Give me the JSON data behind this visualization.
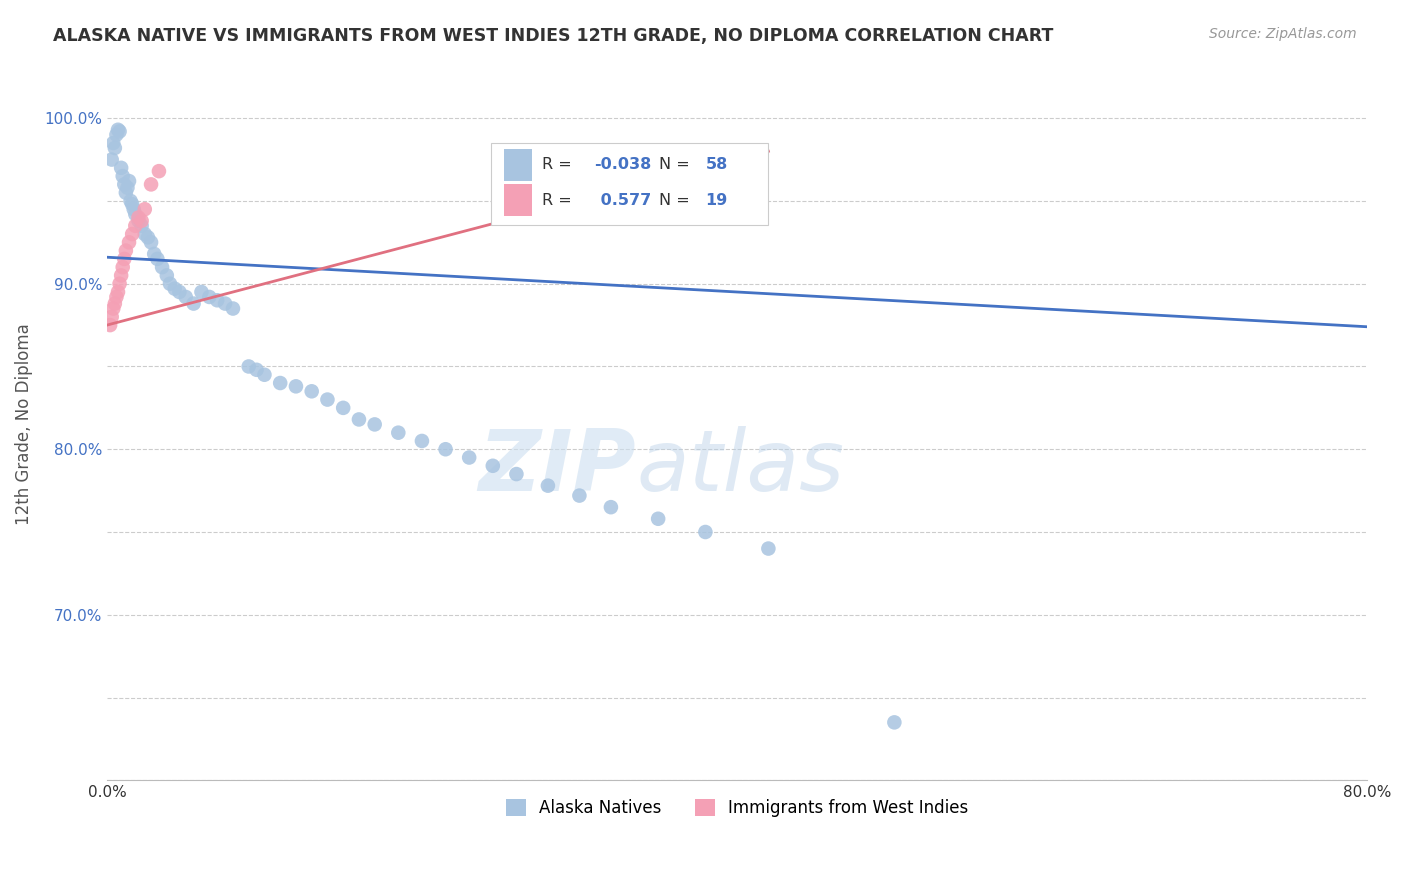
{
  "title": "ALASKA NATIVE VS IMMIGRANTS FROM WEST INDIES 12TH GRADE, NO DIPLOMA CORRELATION CHART",
  "source": "Source: ZipAtlas.com",
  "ylabel": "12th Grade, No Diploma",
  "xlim": [
    0.0,
    0.8
  ],
  "ylim": [
    0.6,
    1.03
  ],
  "xticks": [
    0.0,
    0.1,
    0.2,
    0.3,
    0.4,
    0.5,
    0.6,
    0.7,
    0.8
  ],
  "xticklabels": [
    "0.0%",
    "",
    "",
    "",
    "",
    "",
    "",
    "",
    "80.0%"
  ],
  "yticks": [
    0.6,
    0.65,
    0.7,
    0.75,
    0.8,
    0.85,
    0.9,
    0.95,
    1.0
  ],
  "yticklabels": [
    "",
    "",
    "70.0%",
    "",
    "80.0%",
    "",
    "90.0%",
    "",
    "100.0%"
  ],
  "blue_color": "#a8c4e0",
  "pink_color": "#f4a0b5",
  "blue_line_color": "#4472c4",
  "pink_line_color": "#e07080",
  "watermark_zip": "ZIP",
  "watermark_atlas": "atlas",
  "alaska_x": [
    0.003,
    0.004,
    0.005,
    0.006,
    0.007,
    0.008,
    0.009,
    0.01,
    0.011,
    0.012,
    0.013,
    0.014,
    0.015,
    0.016,
    0.017,
    0.018,
    0.02,
    0.022,
    0.024,
    0.026,
    0.028,
    0.03,
    0.032,
    0.035,
    0.038,
    0.04,
    0.043,
    0.046,
    0.05,
    0.055,
    0.06,
    0.065,
    0.07,
    0.075,
    0.08,
    0.09,
    0.095,
    0.1,
    0.11,
    0.12,
    0.13,
    0.14,
    0.15,
    0.16,
    0.17,
    0.185,
    0.2,
    0.215,
    0.23,
    0.245,
    0.26,
    0.28,
    0.3,
    0.32,
    0.35,
    0.38,
    0.42,
    0.5
  ],
  "alaska_y": [
    0.975,
    0.985,
    0.982,
    0.99,
    0.993,
    0.992,
    0.97,
    0.965,
    0.96,
    0.955,
    0.958,
    0.962,
    0.95,
    0.948,
    0.945,
    0.942,
    0.938,
    0.935,
    0.93,
    0.928,
    0.925,
    0.918,
    0.915,
    0.91,
    0.905,
    0.9,
    0.897,
    0.895,
    0.892,
    0.888,
    0.895,
    0.892,
    0.89,
    0.888,
    0.885,
    0.85,
    0.848,
    0.845,
    0.84,
    0.838,
    0.835,
    0.83,
    0.825,
    0.818,
    0.815,
    0.81,
    0.805,
    0.8,
    0.795,
    0.79,
    0.785,
    0.778,
    0.772,
    0.765,
    0.758,
    0.75,
    0.74,
    0.635
  ],
  "westindies_x": [
    0.002,
    0.003,
    0.004,
    0.005,
    0.006,
    0.007,
    0.008,
    0.009,
    0.01,
    0.011,
    0.012,
    0.014,
    0.016,
    0.018,
    0.02,
    0.022,
    0.024,
    0.028,
    0.033
  ],
  "westindies_y": [
    0.875,
    0.88,
    0.885,
    0.888,
    0.892,
    0.895,
    0.9,
    0.905,
    0.91,
    0.915,
    0.92,
    0.925,
    0.93,
    0.935,
    0.94,
    0.938,
    0.945,
    0.96,
    0.968
  ],
  "blue_regline_x": [
    0.0,
    0.8
  ],
  "blue_regline_y": [
    0.916,
    0.874
  ],
  "pink_regline_x": [
    0.0,
    0.42
  ],
  "pink_regline_y": [
    0.875,
    0.98
  ]
}
